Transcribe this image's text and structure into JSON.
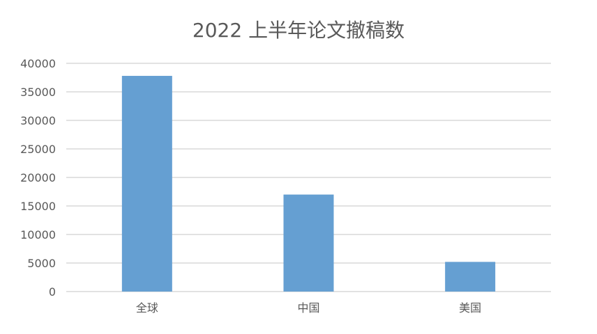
{
  "chart_data": {
    "type": "bar",
    "title": "2022 上半年论文撤稿数",
    "categories": [
      "全球",
      "中国",
      "美国"
    ],
    "values": [
      37800,
      17000,
      5200
    ],
    "ylim": [
      0,
      40000
    ],
    "yticks": [
      0,
      5000,
      10000,
      15000,
      20000,
      25000,
      30000,
      35000,
      40000
    ],
    "grid": true,
    "bar_color": "#659fd2",
    "xlabel": "",
    "ylabel": ""
  }
}
